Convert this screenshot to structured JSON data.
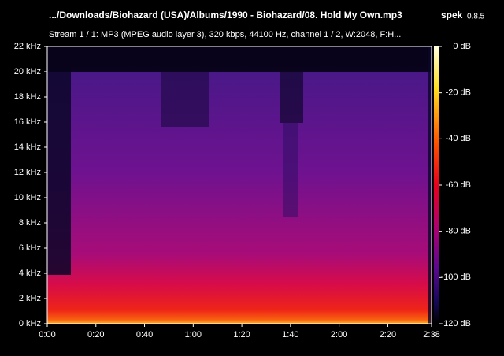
{
  "chart_data": {
    "type": "spectrogram",
    "title": ".../Downloads/Biohazard (USA)/Albums/1990 - Biohazard/08. Hold My Own.mp3",
    "app_name": "spek",
    "app_version": "0.8.5",
    "subtitle": "Stream 1 / 1: MP3 (MPEG audio layer 3), 320 kbps, 44100 Hz, channel 1 / 2, W:2048, F:H...",
    "xlim": [
      0,
      158
    ],
    "xticks": [
      {
        "value": 0,
        "label": "0:00"
      },
      {
        "value": 20,
        "label": "0:20"
      },
      {
        "value": 40,
        "label": "0:40"
      },
      {
        "value": 60,
        "label": "1:00"
      },
      {
        "value": 80,
        "label": "1:20"
      },
      {
        "value": 100,
        "label": "1:40"
      },
      {
        "value": 120,
        "label": "2:00"
      },
      {
        "value": 140,
        "label": "2:20"
      },
      {
        "value": 158,
        "label": "2:38"
      }
    ],
    "ylim": [
      0,
      22
    ],
    "yticks": [
      {
        "value": 0,
        "label": "0 kHz"
      },
      {
        "value": 2,
        "label": "2 kHz"
      },
      {
        "value": 4,
        "label": "4 kHz"
      },
      {
        "value": 6,
        "label": "6 kHz"
      },
      {
        "value": 8,
        "label": "8 kHz"
      },
      {
        "value": 10,
        "label": "10 kHz"
      },
      {
        "value": 12,
        "label": "12 kHz"
      },
      {
        "value": 14,
        "label": "14 kHz"
      },
      {
        "value": 16,
        "label": "16 kHz"
      },
      {
        "value": 18,
        "label": "18 kHz"
      },
      {
        "value": 20,
        "label": "20 kHz"
      },
      {
        "value": 22,
        "label": "22 kHz"
      }
    ],
    "colorbar": {
      "lim": [
        -120,
        0
      ],
      "ticks": [
        {
          "value": 0,
          "label": "0 dB"
        },
        {
          "value": -20,
          "label": "-20 dB"
        },
        {
          "value": -40,
          "label": "-40 dB"
        },
        {
          "value": -60,
          "label": "-60 dB"
        },
        {
          "value": -80,
          "label": "-80 dB"
        },
        {
          "value": -100,
          "label": "-100 dB"
        },
        {
          "value": -120,
          "label": "-120 dB"
        }
      ]
    }
  }
}
